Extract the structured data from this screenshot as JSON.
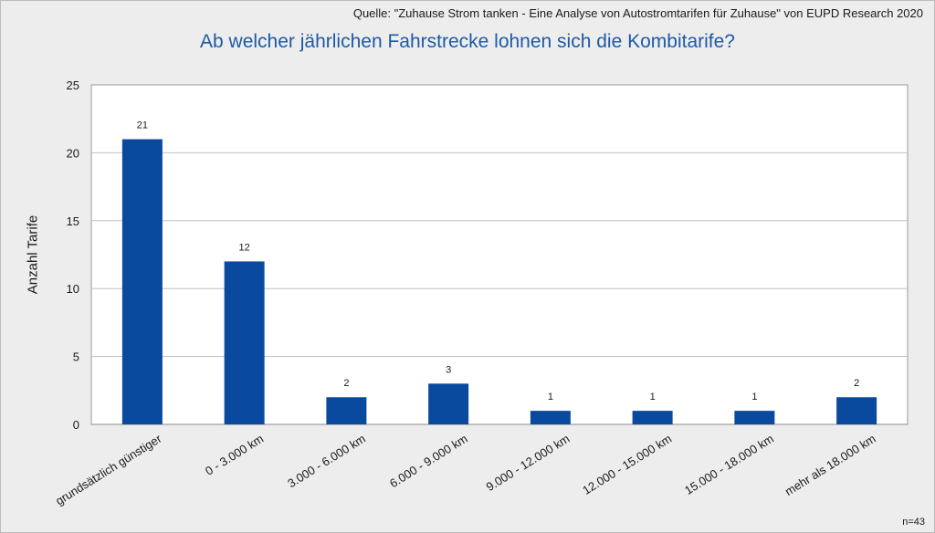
{
  "source": "Quelle:  \"Zuhause Strom tanken - Eine Analyse von Autostromtarifen für Zuhause\" von  EUPD Research 2020",
  "note": "n=43",
  "colors": {
    "bar": "#0a4a9e",
    "title": "#1d5aa6",
    "background": "#ededed",
    "plot_area": "#ffffff",
    "grid": "#bfbfbf"
  },
  "chart_data": {
    "type": "bar",
    "title": "Ab welcher jährlichen Fahrstrecke lohnen sich die Kombitarife?",
    "xlabel": "",
    "ylabel": "Anzahl Tarife",
    "ylim": [
      0,
      25
    ],
    "yticks": [
      0,
      5,
      10,
      15,
      20,
      25
    ],
    "grid": true,
    "categories": [
      "grundsätzlich günstiger",
      "0 - 3.000 km",
      "3.000 - 6.000 km",
      "6.000 - 9.000 km",
      "9.000 - 12.000 km",
      "12.000 - 15.000 km",
      "15.000 - 18.000 km",
      "mehr als 18.000 km"
    ],
    "values": [
      21,
      12,
      2,
      3,
      1,
      1,
      1,
      2
    ]
  }
}
